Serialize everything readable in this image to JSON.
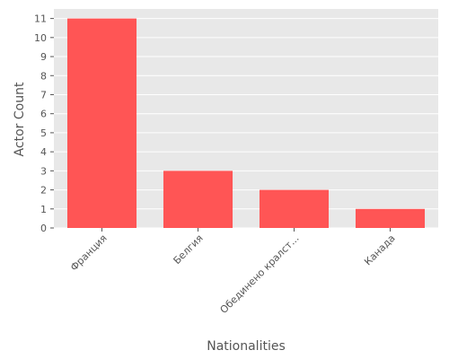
{
  "chart_data": {
    "type": "bar",
    "categories": [
      "Франция",
      "Белгия",
      "Обединено кралст...",
      "Канада"
    ],
    "values": [
      11,
      3,
      2,
      1
    ],
    "title": "",
    "xlabel": "Nationalities",
    "ylabel": "Actor Count",
    "ylim": [
      0,
      11.5
    ],
    "yticks": [
      0,
      1,
      2,
      3,
      4,
      5,
      6,
      7,
      8,
      9,
      10,
      11
    ],
    "grid": true,
    "bar_color": "#ff5555",
    "background_color": "#e8e8e8",
    "grid_color": "#ffffff"
  }
}
